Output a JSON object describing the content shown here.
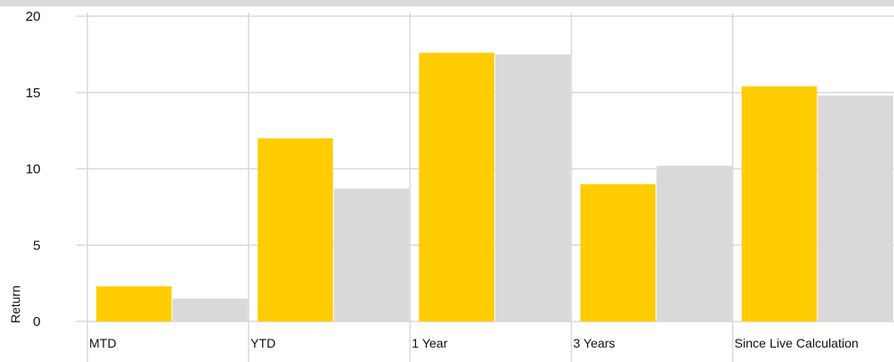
{
  "chart_data": {
    "type": "bar",
    "title": "",
    "xlabel": "",
    "ylabel": "Return",
    "ylim": [
      0,
      20
    ],
    "yticks": [
      0,
      5,
      10,
      15,
      20
    ],
    "categories": [
      "MTD",
      "YTD",
      "1 Year",
      "3 Years",
      "Since Live Calculation"
    ],
    "series": [
      {
        "color": "#ffcc00",
        "values": [
          2.3,
          12.0,
          17.6,
          9.0,
          15.4
        ]
      },
      {
        "color": "#d9d9d9",
        "values": [
          1.5,
          8.7,
          17.5,
          10.2,
          14.8
        ]
      }
    ],
    "grid": true,
    "legend": "none"
  }
}
